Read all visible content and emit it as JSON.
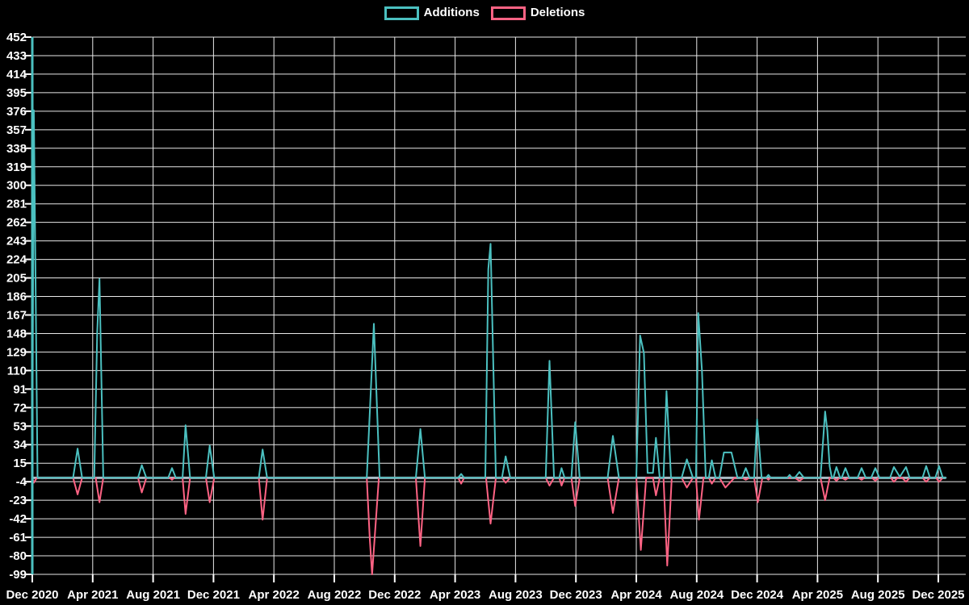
{
  "page": {
    "background": "#000000"
  },
  "legend": {
    "items": [
      {
        "label": "Additions",
        "color": "#4BC0C0"
      },
      {
        "label": "Deletions",
        "color": "#FF6384"
      }
    ]
  },
  "chart_data": {
    "type": "line",
    "title": "",
    "xlabel": "",
    "ylabel": "",
    "x_unit": "months since Dec 2020 (weekly commit activity)",
    "x_tick_labels": [
      "Dec 2020",
      "Apr 2021",
      "Aug 2021",
      "Dec 2021",
      "Apr 2022",
      "Aug 2022",
      "Dec 2022",
      "Apr 2023",
      "Aug 2023",
      "Dec 2023",
      "Apr 2024",
      "Aug 2024",
      "Dec 2024",
      "Apr 2025",
      "Aug 2025",
      "Dec 2025"
    ],
    "y_tick_labels": [
      452,
      433,
      414,
      395,
      376,
      357,
      338,
      319,
      300,
      281,
      262,
      243,
      224,
      205,
      186,
      167,
      148,
      129,
      110,
      91,
      72,
      53,
      34,
      15,
      -4,
      -23,
      -42,
      -61,
      -80,
      -99
    ],
    "ylim": [
      -99,
      452
    ],
    "grid": true,
    "legend_position": "top",
    "colors": {
      "background": "#000000",
      "gridline": "#e8e8e8",
      "zero_line": "#A9BCC6",
      "axis_line": "#4BC0C0",
      "tick_text": "#ffffff",
      "additions": "#4BC0C0",
      "deletions": "#FF6384"
    },
    "series": [
      {
        "name": "Additions",
        "color": "#4BC0C0",
        "points": [
          [
            0,
            0
          ],
          [
            0.1,
            377
          ],
          [
            0.35,
            0
          ],
          [
            2.7,
            0
          ],
          [
            3.0,
            30
          ],
          [
            3.3,
            0
          ],
          [
            4.1,
            0
          ],
          [
            4.3,
            150
          ],
          [
            4.45,
            204
          ],
          [
            4.7,
            0
          ],
          [
            7.0,
            0
          ],
          [
            7.25,
            13
          ],
          [
            7.55,
            0
          ],
          [
            9.0,
            0
          ],
          [
            9.25,
            10
          ],
          [
            9.5,
            0
          ],
          [
            9.95,
            0
          ],
          [
            10.15,
            54
          ],
          [
            10.45,
            0
          ],
          [
            11.5,
            0
          ],
          [
            11.75,
            33
          ],
          [
            12.05,
            0
          ],
          [
            15.0,
            0
          ],
          [
            15.25,
            29
          ],
          [
            15.55,
            0
          ],
          [
            22.15,
            0
          ],
          [
            22.4,
            84
          ],
          [
            22.62,
            158
          ],
          [
            23.0,
            0
          ],
          [
            25.4,
            0
          ],
          [
            25.7,
            50
          ],
          [
            26.0,
            0
          ],
          [
            28.2,
            0
          ],
          [
            28.4,
            4
          ],
          [
            28.6,
            0
          ],
          [
            30.0,
            0
          ],
          [
            30.2,
            214
          ],
          [
            30.35,
            240
          ],
          [
            30.7,
            0
          ],
          [
            31.1,
            0
          ],
          [
            31.35,
            22
          ],
          [
            31.65,
            0
          ],
          [
            34.0,
            0
          ],
          [
            34.25,
            120
          ],
          [
            34.55,
            0
          ],
          [
            34.9,
            0
          ],
          [
            35.05,
            10
          ],
          [
            35.25,
            0
          ],
          [
            35.7,
            0
          ],
          [
            35.95,
            57
          ],
          [
            36.25,
            0
          ],
          [
            38.1,
            0
          ],
          [
            38.45,
            43
          ],
          [
            38.85,
            0
          ],
          [
            40.0,
            0
          ],
          [
            40.25,
            146
          ],
          [
            40.5,
            128
          ],
          [
            40.75,
            5
          ],
          [
            41.1,
            5
          ],
          [
            41.3,
            41
          ],
          [
            41.55,
            0
          ],
          [
            41.8,
            0
          ],
          [
            42.0,
            89
          ],
          [
            42.3,
            0
          ],
          [
            43.0,
            0
          ],
          [
            43.35,
            19
          ],
          [
            43.75,
            0
          ],
          [
            43.95,
            0
          ],
          [
            44.1,
            169
          ],
          [
            44.35,
            110
          ],
          [
            44.6,
            0
          ],
          [
            44.8,
            0
          ],
          [
            45.0,
            18
          ],
          [
            45.25,
            0
          ],
          [
            45.5,
            0
          ],
          [
            45.8,
            26
          ],
          [
            46.3,
            26
          ],
          [
            46.7,
            0
          ],
          [
            47.0,
            0
          ],
          [
            47.25,
            10
          ],
          [
            47.5,
            0
          ],
          [
            47.8,
            0
          ],
          [
            48.0,
            60
          ],
          [
            48.3,
            0
          ],
          [
            48.6,
            0
          ],
          [
            48.75,
            3
          ],
          [
            48.9,
            0
          ],
          [
            50.0,
            0
          ],
          [
            50.15,
            3
          ],
          [
            50.3,
            0
          ],
          [
            50.5,
            0
          ],
          [
            50.8,
            6
          ],
          [
            51.1,
            0
          ],
          [
            52.2,
            0
          ],
          [
            52.5,
            68
          ],
          [
            52.65,
            48
          ],
          [
            52.8,
            12
          ],
          [
            52.95,
            0
          ],
          [
            53.05,
            0
          ],
          [
            53.25,
            11
          ],
          [
            53.5,
            0
          ],
          [
            53.6,
            0
          ],
          [
            53.85,
            10
          ],
          [
            54.1,
            0
          ],
          [
            54.65,
            0
          ],
          [
            54.92,
            10
          ],
          [
            55.2,
            0
          ],
          [
            55.55,
            0
          ],
          [
            55.83,
            10
          ],
          [
            56.1,
            0
          ],
          [
            56.8,
            0
          ],
          [
            57.06,
            11
          ],
          [
            57.45,
            1
          ],
          [
            57.86,
            11
          ],
          [
            58.1,
            0
          ],
          [
            58.95,
            0
          ],
          [
            59.2,
            12
          ],
          [
            59.45,
            0
          ],
          [
            59.8,
            0
          ],
          [
            60.05,
            12
          ],
          [
            60.3,
            0
          ],
          [
            60.5,
            0
          ]
        ]
      },
      {
        "name": "Deletions",
        "color": "#FF6384",
        "points": [
          [
            0,
            0
          ],
          [
            0.1,
            -5
          ],
          [
            0.3,
            0
          ],
          [
            2.7,
            0
          ],
          [
            3.0,
            -17
          ],
          [
            3.3,
            0
          ],
          [
            4.2,
            0
          ],
          [
            4.45,
            -25
          ],
          [
            4.7,
            0
          ],
          [
            7.0,
            0
          ],
          [
            7.25,
            -15
          ],
          [
            7.55,
            0
          ],
          [
            9.1,
            0
          ],
          [
            9.25,
            -2
          ],
          [
            9.4,
            0
          ],
          [
            9.95,
            0
          ],
          [
            10.15,
            -37
          ],
          [
            10.45,
            0
          ],
          [
            11.5,
            0
          ],
          [
            11.75,
            -25
          ],
          [
            12.05,
            0
          ],
          [
            15.0,
            0
          ],
          [
            15.25,
            -43
          ],
          [
            15.55,
            0
          ],
          [
            22.15,
            0
          ],
          [
            22.35,
            -62
          ],
          [
            22.5,
            -99
          ],
          [
            22.95,
            0
          ],
          [
            25.4,
            0
          ],
          [
            25.7,
            -70
          ],
          [
            26.0,
            0
          ],
          [
            28.2,
            0
          ],
          [
            28.4,
            -6
          ],
          [
            28.6,
            0
          ],
          [
            30.05,
            0
          ],
          [
            30.35,
            -47
          ],
          [
            30.7,
            0
          ],
          [
            31.1,
            0
          ],
          [
            31.35,
            -5
          ],
          [
            31.65,
            0
          ],
          [
            34.0,
            0
          ],
          [
            34.25,
            -8
          ],
          [
            34.55,
            0
          ],
          [
            34.9,
            0
          ],
          [
            35.05,
            -8
          ],
          [
            35.25,
            0
          ],
          [
            35.7,
            0
          ],
          [
            35.95,
            -29
          ],
          [
            36.25,
            0
          ],
          [
            38.1,
            0
          ],
          [
            38.45,
            -36
          ],
          [
            38.85,
            0
          ],
          [
            40.0,
            0
          ],
          [
            40.3,
            -74
          ],
          [
            40.65,
            0
          ],
          [
            41.1,
            0
          ],
          [
            41.3,
            -18
          ],
          [
            41.55,
            0
          ],
          [
            41.8,
            0
          ],
          [
            42.05,
            -90
          ],
          [
            42.35,
            0
          ],
          [
            43.0,
            0
          ],
          [
            43.35,
            -10
          ],
          [
            43.75,
            0
          ],
          [
            43.95,
            0
          ],
          [
            44.15,
            -43
          ],
          [
            44.45,
            0
          ],
          [
            44.8,
            0
          ],
          [
            45.0,
            -6
          ],
          [
            45.25,
            0
          ],
          [
            45.5,
            0
          ],
          [
            45.9,
            -10
          ],
          [
            46.5,
            0
          ],
          [
            47.0,
            0
          ],
          [
            47.25,
            -2
          ],
          [
            47.5,
            0
          ],
          [
            47.8,
            0
          ],
          [
            48.05,
            -25
          ],
          [
            48.35,
            0
          ],
          [
            48.6,
            0
          ],
          [
            48.75,
            -2
          ],
          [
            48.9,
            0
          ],
          [
            50.5,
            0
          ],
          [
            50.8,
            -3
          ],
          [
            51.1,
            0
          ],
          [
            52.2,
            0
          ],
          [
            52.5,
            -23
          ],
          [
            52.8,
            0
          ],
          [
            53.05,
            0
          ],
          [
            53.25,
            -3
          ],
          [
            53.45,
            0
          ],
          [
            53.6,
            0
          ],
          [
            53.85,
            -2
          ],
          [
            54.05,
            0
          ],
          [
            54.7,
            0
          ],
          [
            54.92,
            -2
          ],
          [
            55.1,
            0
          ],
          [
            55.6,
            0
          ],
          [
            55.83,
            -3
          ],
          [
            56.05,
            0
          ],
          [
            56.85,
            0
          ],
          [
            57.06,
            -4
          ],
          [
            57.3,
            0
          ],
          [
            57.6,
            0
          ],
          [
            57.86,
            -4
          ],
          [
            58.1,
            0
          ],
          [
            58.95,
            0
          ],
          [
            59.2,
            -4
          ],
          [
            59.45,
            0
          ],
          [
            59.85,
            0
          ],
          [
            60.05,
            -4
          ],
          [
            60.3,
            0
          ],
          [
            60.5,
            0
          ]
        ]
      }
    ]
  }
}
